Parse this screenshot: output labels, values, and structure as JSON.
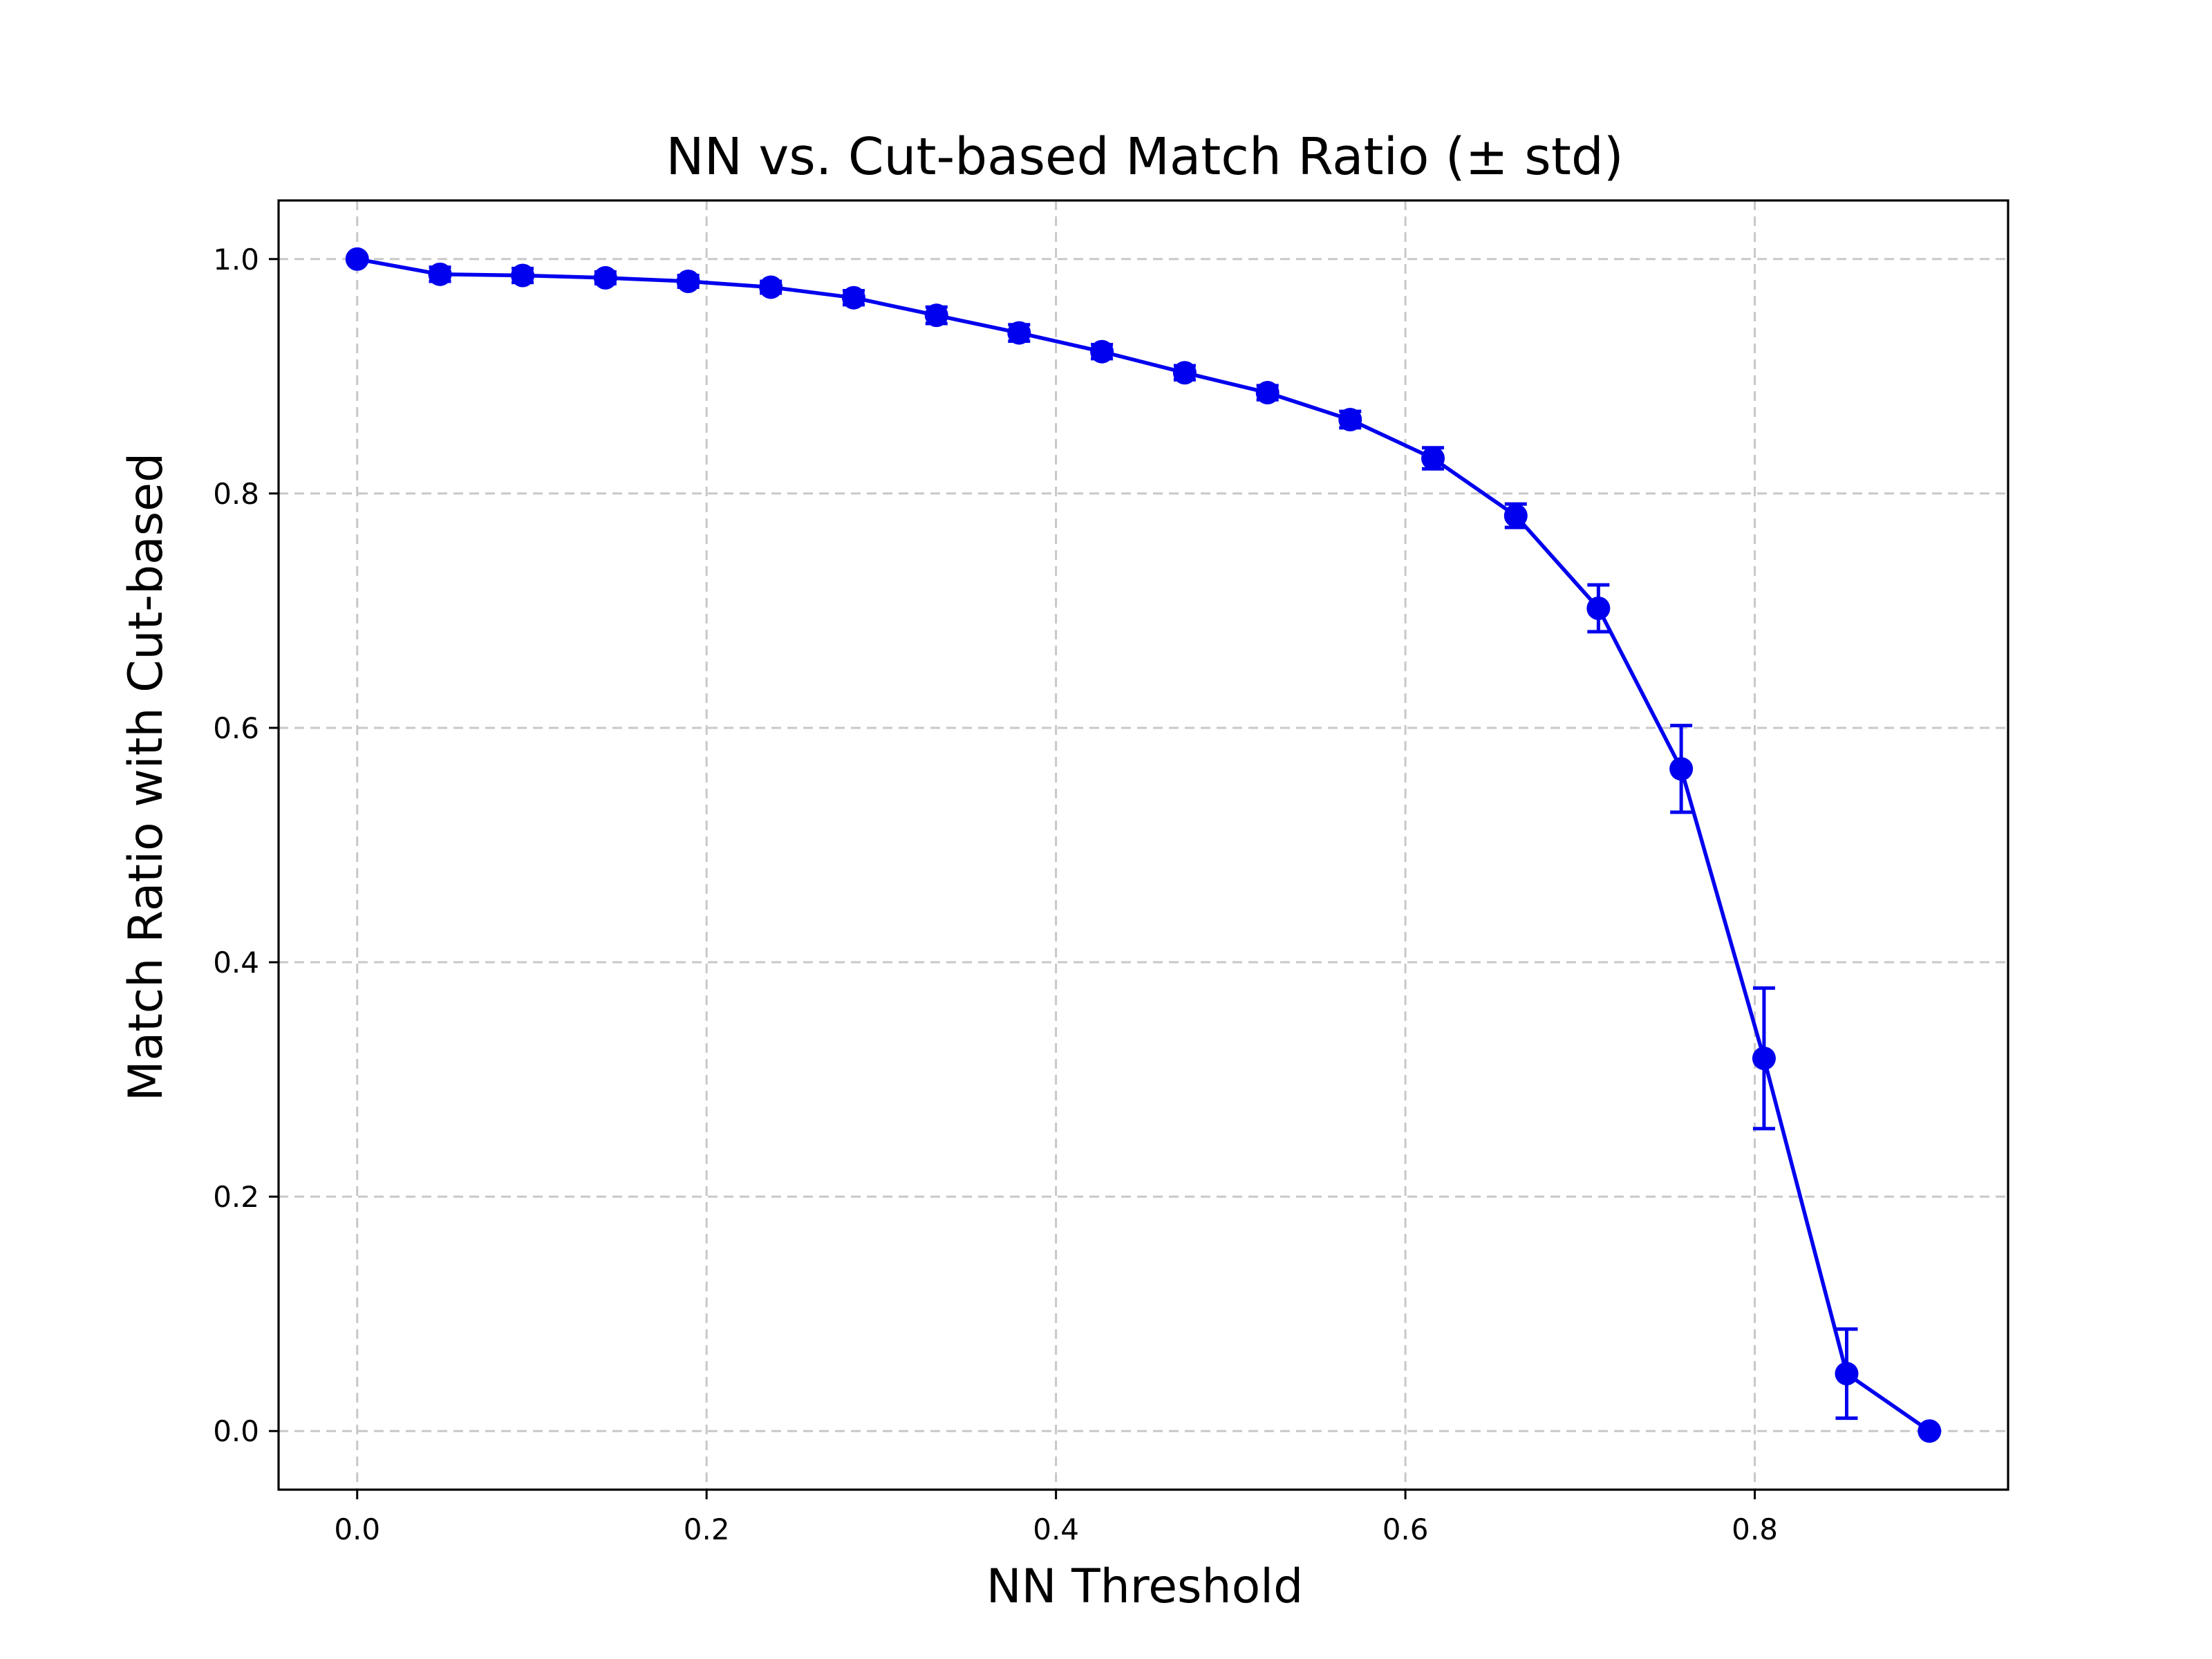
{
  "title": "NN vs. Cut-based Match Ratio (± std)",
  "colors": {
    "series": "#0000ee",
    "grid": "#c8c8c8",
    "axis": "#000000"
  },
  "chart_data": {
    "type": "line",
    "title": "NN vs. Cut-based Match Ratio (± std)",
    "xlabel": "NN Threshold",
    "ylabel": "Match Ratio with Cut-based",
    "xlim": [
      -0.045,
      0.945
    ],
    "ylim": [
      -0.05,
      1.05
    ],
    "xticks": [
      0.0,
      0.2,
      0.4,
      0.6,
      0.8
    ],
    "xtick_labels": [
      "0.0",
      "0.2",
      "0.4",
      "0.6",
      "0.8"
    ],
    "yticks": [
      0.0,
      0.2,
      0.4,
      0.6,
      0.8,
      1.0
    ],
    "ytick_labels": [
      "0.0",
      "0.2",
      "0.4",
      "0.6",
      "0.8",
      "1.0"
    ],
    "grid": true,
    "legend": "none",
    "series": [
      {
        "color": "#0000ee",
        "marker": "circle",
        "x": [
          0.0,
          0.0474,
          0.0947,
          0.1421,
          0.1895,
          0.2368,
          0.2842,
          0.3316,
          0.3789,
          0.4263,
          0.4737,
          0.5211,
          0.5684,
          0.6158,
          0.6632,
          0.7105,
          0.7579,
          0.8053,
          0.8526,
          0.9
        ],
        "y": [
          1.0,
          0.987,
          0.986,
          0.984,
          0.981,
          0.976,
          0.967,
          0.952,
          0.937,
          0.921,
          0.903,
          0.886,
          0.863,
          0.83,
          0.781,
          0.702,
          0.565,
          0.318,
          0.049,
          0.0
        ],
        "yerr": [
          0.0,
          0.006,
          0.006,
          0.005,
          0.005,
          0.005,
          0.006,
          0.007,
          0.007,
          0.006,
          0.006,
          0.006,
          0.007,
          0.009,
          0.01,
          0.02,
          0.037,
          0.06,
          0.038,
          0.0
        ]
      }
    ]
  }
}
